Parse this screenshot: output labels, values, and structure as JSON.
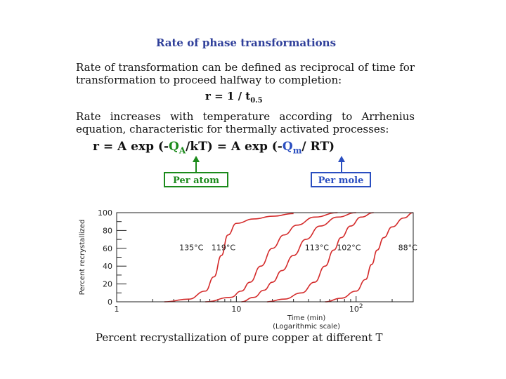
{
  "slide": {
    "title": "Rate of phase transformations",
    "para1": "Rate of transformation can be defined as reciprocal of time for transformation to proceed halfway to completion:",
    "formula1": {
      "lhs": "r  =  1 / t",
      "sub": "0.5"
    },
    "para2": "Rate increases with temperature according to Arrhenius equation, characteristic for thermally activated processes:",
    "formula2": {
      "part1": "r  =  A exp (-",
      "qa": "Q",
      "qa_sub": "A",
      "part2": "/kT)  =  A exp (-",
      "qm": "Q",
      "qm_sub": "m",
      "part3": "/ RT)"
    },
    "box_atom": "Per atom",
    "box_mole": "Per mole",
    "caption": "Percent recrystallization of pure copper at different T",
    "colors": {
      "title": "#2f3f9a",
      "atom": "#1b8a1b",
      "mole": "#2a4ec0",
      "curve": "#d42b2b"
    }
  },
  "chart_data": {
    "type": "line",
    "xlabel": "Time (min)",
    "xlabel_note": "(Logarithmic scale)",
    "ylabel": "Percent recrystallized",
    "x_scale": "log",
    "xlim": [
      1,
      300
    ],
    "ylim": [
      0,
      100
    ],
    "x_ticks": [
      {
        "value": 1,
        "label": "1"
      },
      {
        "value": 10,
        "label": "10"
      },
      {
        "value": 100,
        "label": "10",
        "sup": "2"
      }
    ],
    "y_ticks": [
      0,
      20,
      40,
      60,
      80,
      100
    ],
    "series": [
      {
        "name": "135°C",
        "x": [
          2.5,
          4,
          5.5,
          6.5,
          7.5,
          8.5,
          10,
          14,
          20,
          30
        ],
        "y": [
          0,
          3,
          12,
          28,
          52,
          75,
          88,
          93,
          96,
          99
        ]
      },
      {
        "name": "119°C",
        "x": [
          5.5,
          9,
          11,
          13,
          16,
          20,
          25,
          32,
          45,
          70
        ],
        "y": [
          0,
          5,
          12,
          22,
          40,
          60,
          75,
          86,
          95,
          100
        ]
      },
      {
        "name": "113°C",
        "x": [
          11,
          14,
          17,
          20,
          24,
          30,
          38,
          50,
          70,
          100
        ],
        "y": [
          0,
          5,
          13,
          22,
          35,
          52,
          70,
          85,
          95,
          100
        ]
      },
      {
        "name": "102°C",
        "x": [
          18,
          25,
          35,
          45,
          55,
          65,
          75,
          90,
          110,
          140
        ],
        "y": [
          0,
          3,
          10,
          22,
          40,
          58,
          72,
          85,
          95,
          100
        ]
      },
      {
        "name": "88°C",
        "x": [
          55,
          75,
          100,
          120,
          135,
          150,
          170,
          200,
          250,
          300
        ],
        "y": [
          0,
          4,
          12,
          25,
          42,
          58,
          72,
          84,
          94,
          100
        ]
      }
    ],
    "curve_labels": [
      {
        "text": "135°C",
        "x": 4.2,
        "y": 58
      },
      {
        "text": "119°C",
        "x": 7.8,
        "y": 58
      },
      {
        "text": "113°C",
        "x": 47,
        "y": 58
      },
      {
        "text": "102°C",
        "x": 87,
        "y": 58
      },
      {
        "text": "88°C",
        "x": 270,
        "y": 58
      }
    ],
    "grid": false
  }
}
